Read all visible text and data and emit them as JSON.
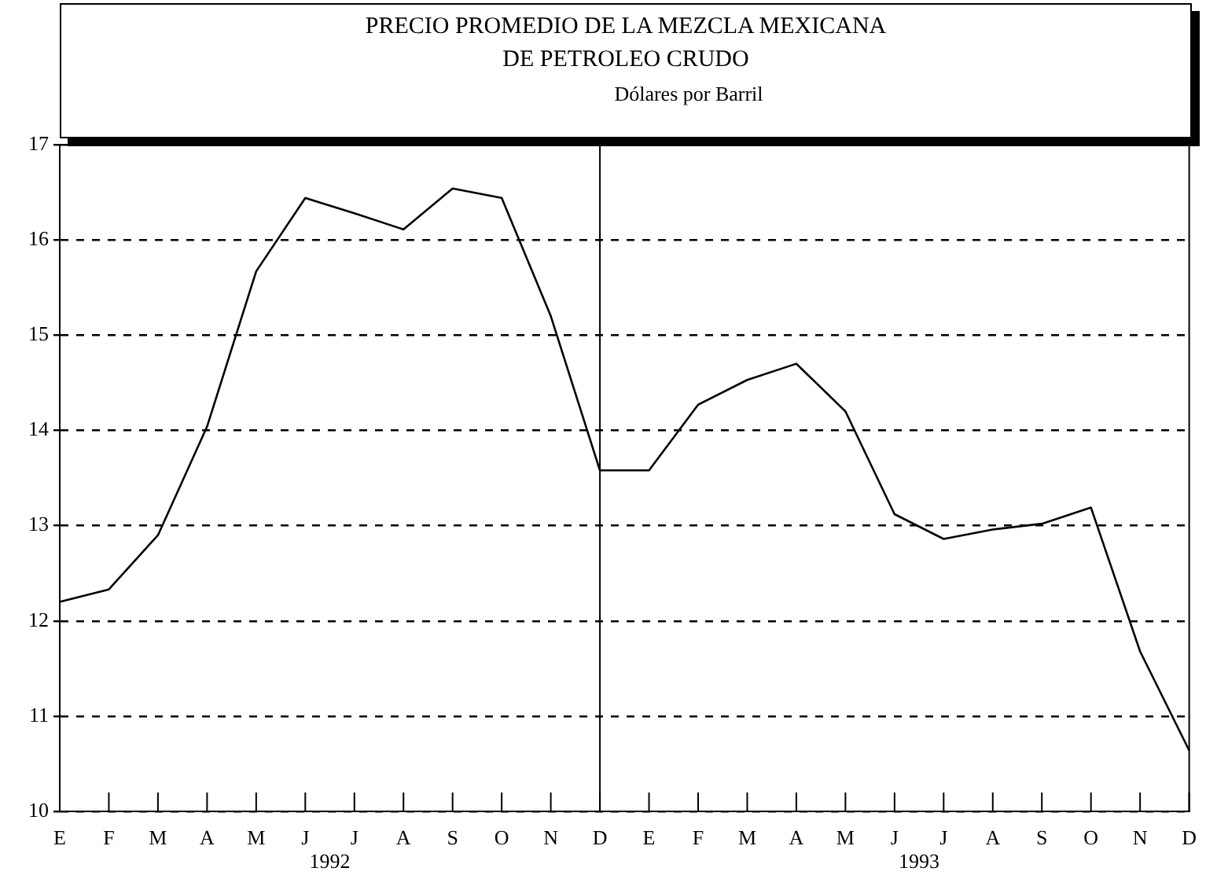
{
  "chart_data": {
    "type": "line",
    "title": "PRECIO PROMEDIO DE LA MEZCLA MEXICANA\nDE PETROLEO CRUDO",
    "subtitle": "Dólares por Barril",
    "categories": [
      "E",
      "F",
      "M",
      "A",
      "M",
      "J",
      "J",
      "A",
      "S",
      "O",
      "N",
      "D",
      "E",
      "F",
      "M",
      "A",
      "M",
      "J",
      "J",
      "A",
      "S",
      "O",
      "N",
      "D"
    ],
    "series": [
      {
        "color": "#000000",
        "values": [
          12.2,
          12.33,
          12.9,
          14.04,
          15.67,
          16.44,
          16.28,
          16.11,
          16.54,
          16.44,
          15.2,
          13.58,
          13.58,
          14.27,
          14.53,
          14.7,
          14.2,
          13.12,
          12.86,
          12.96,
          13.02,
          13.19,
          11.68,
          10.64
        ]
      }
    ],
    "ylim": [
      10,
      17
    ],
    "yticks": [
      10,
      11,
      12,
      13,
      14,
      15,
      16,
      17
    ],
    "grid": "y",
    "legend": false,
    "marker": "none",
    "line_style": "solid",
    "ref_lines": [
      {
        "axis": "x",
        "value": "D",
        "color": "#000000"
      }
    ],
    "annotations": [
      "1992",
      "1993"
    ]
  }
}
